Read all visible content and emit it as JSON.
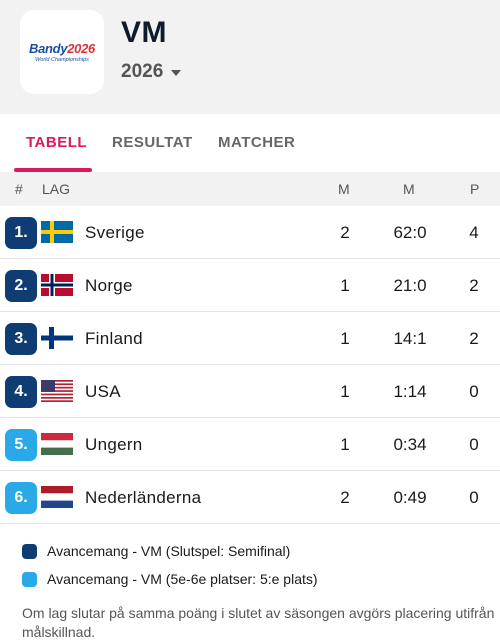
{
  "header": {
    "logo_main": "Bandy",
    "logo_year": "2026",
    "logo_sub": "World Championships",
    "title": "VM",
    "season": "2026"
  },
  "tabs": [
    {
      "label": "TABELL",
      "active": true
    },
    {
      "label": "RESULTAT",
      "active": false
    },
    {
      "label": "MATCHER",
      "active": false
    }
  ],
  "table": {
    "headers": {
      "rank": "#",
      "team": "LAG",
      "col1": "M",
      "col2": "M",
      "col3": "P"
    },
    "rows": [
      {
        "rank": "1.",
        "team": "Sverige",
        "flag": "sweden-flag",
        "c1": "2",
        "c2": "62:0",
        "c3": "4",
        "color": "#0f3d73"
      },
      {
        "rank": "2.",
        "team": "Norge",
        "flag": "norway-flag",
        "c1": "1",
        "c2": "21:0",
        "c3": "2",
        "color": "#0f3d73"
      },
      {
        "rank": "3.",
        "team": "Finland",
        "flag": "finland-flag",
        "c1": "1",
        "c2": "14:1",
        "c3": "2",
        "color": "#0f3d73"
      },
      {
        "rank": "4.",
        "team": "USA",
        "flag": "usa-flag",
        "c1": "1",
        "c2": "1:14",
        "c3": "0",
        "color": "#0f3d73"
      },
      {
        "rank": "5.",
        "team": "Ungern",
        "flag": "hungary-flag",
        "c1": "1",
        "c2": "0:34",
        "c3": "0",
        "color": "#29a9e8"
      },
      {
        "rank": "6.",
        "team": "Nederländerna",
        "flag": "netherlands-flag",
        "c1": "2",
        "c2": "0:49",
        "c3": "0",
        "color": "#29a9e8"
      }
    ]
  },
  "legend": [
    {
      "label": "Avancemang - VM (Slutspel: Semifinal)",
      "color": "#0f3d73"
    },
    {
      "label": "Avancemang - VM (5e-6e platser: 5:e plats)",
      "color": "#29a9e8"
    }
  ],
  "note": "Om lag slutar på samma poäng i slutet av säsongen avgörs placering utifrån målskillnad."
}
